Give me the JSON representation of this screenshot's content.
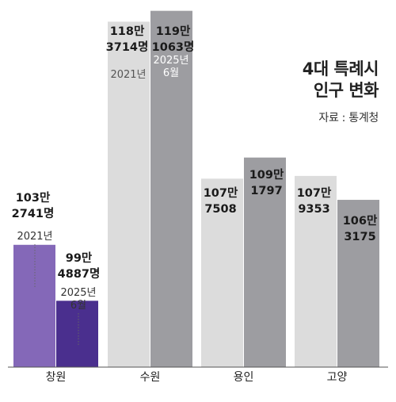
{
  "chart_data": {
    "type": "bar",
    "title_line1": "4대 특례시",
    "title_line2": "인구 변화",
    "source": "자료 : 통계청",
    "categories": [
      "창원",
      "수원",
      "용인",
      "고양"
    ],
    "series": [
      {
        "name": "2021년",
        "values": [
          1032741,
          1183714,
          1077508,
          1079353
        ]
      },
      {
        "name": "2025년 6월",
        "values": [
          994887,
          1191063,
          1091797,
          1063175
        ]
      }
    ],
    "data_labels": [
      [
        [
          "103만",
          "2741명"
        ],
        [
          "99만",
          "4887명"
        ]
      ],
      [
        [
          "118만",
          "3714명"
        ],
        [
          "119만",
          "1063명"
        ]
      ],
      [
        [
          "107만",
          "7508"
        ],
        [
          "109만",
          "1797"
        ]
      ],
      [
        [
          "107만",
          "9353"
        ],
        [
          "106만",
          "3175"
        ]
      ]
    ],
    "period_labels": {
      "changwon": {
        "y2021": "2021년",
        "y2025_line1": "2025년",
        "y2025_line2": "6월"
      },
      "suwon": {
        "y2021": "2021년",
        "y2025_line1": "2025년",
        "y2025_line2": "6월"
      }
    },
    "colors": {
      "changwon_2021": "#8468b8",
      "changwon_2025": "#4a2f8e",
      "other_2021": "#dcdcdc",
      "other_2025": "#9d9da1",
      "axis": "#555555",
      "panel_bg": "#ececec"
    }
  }
}
